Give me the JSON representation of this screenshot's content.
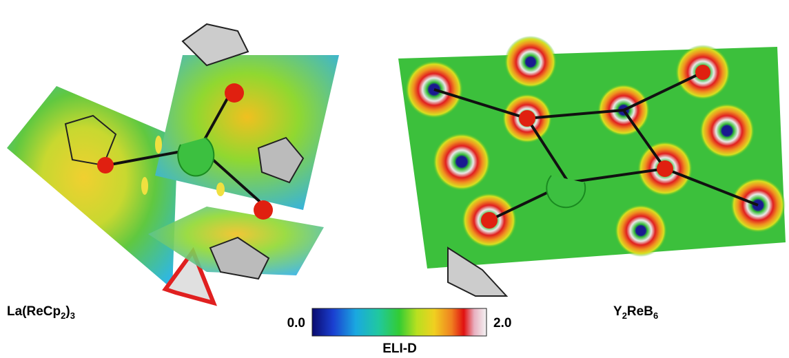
{
  "left_label": [
    "La(ReCp",
    "2",
    ")",
    "3"
  ],
  "right_label": [
    "Y",
    "2",
    "ReB",
    "6"
  ],
  "colorbar": {
    "min_label": "0.0",
    "max_label": "2.0",
    "title": "ELI-D"
  }
}
